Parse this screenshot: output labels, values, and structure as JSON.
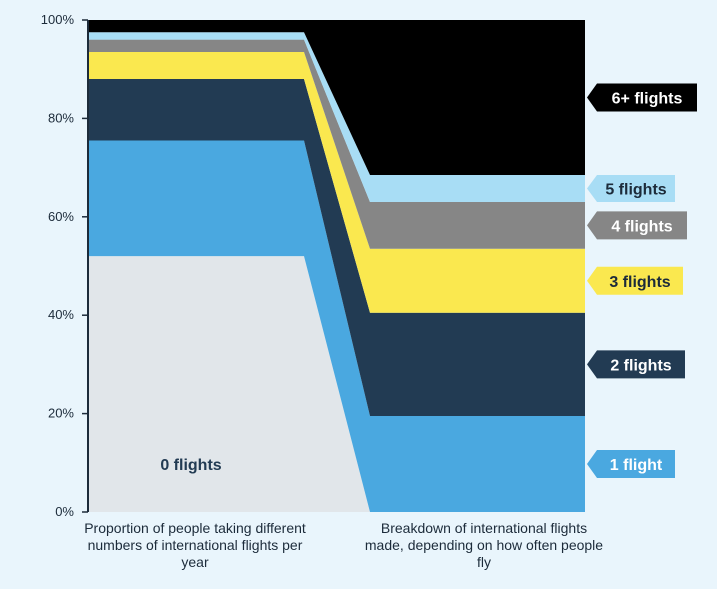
{
  "chart_data": {
    "type": "area",
    "categories": [
      "Proportion of people taking different numbers of international flights per year",
      "Breakdown of international flights made, depending on how often people fly"
    ],
    "ylim": [
      0,
      100
    ],
    "yticks": [
      "0%",
      "20%",
      "40%",
      "60%",
      "80%",
      "100%"
    ],
    "series": [
      {
        "name": "0 flights",
        "color": "#e1e6ea",
        "values": [
          52,
          0
        ]
      },
      {
        "name": "1 flight",
        "color": "#4aa8e0",
        "values": [
          23.5,
          19.5
        ]
      },
      {
        "name": "2 flights",
        "color": "#223b53",
        "values": [
          12.5,
          21
        ]
      },
      {
        "name": "3 flights",
        "color": "#fae84f",
        "values": [
          5.5,
          13
        ]
      },
      {
        "name": "4 flights",
        "color": "#868686",
        "values": [
          2.5,
          9.5
        ]
      },
      {
        "name": "5 flights",
        "color": "#a8ddf5",
        "values": [
          1.5,
          5.5
        ]
      },
      {
        "name": "6+ flights",
        "color": "#000000",
        "values": [
          2.5,
          31.5
        ]
      }
    ]
  }
}
